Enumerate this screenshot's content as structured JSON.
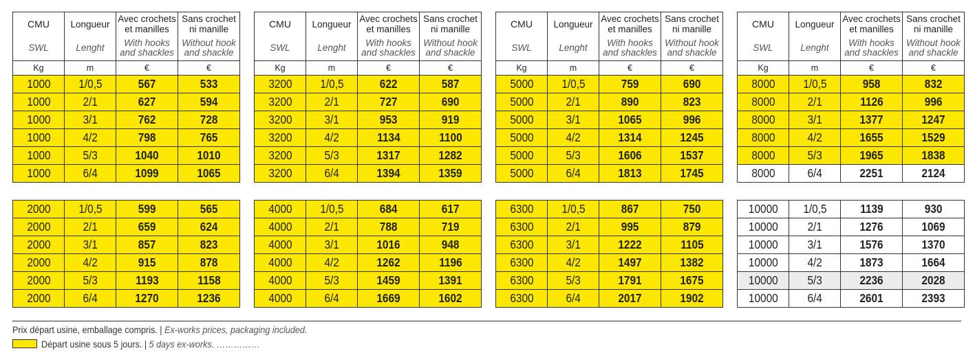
{
  "header": {
    "col_cmu": "CMU",
    "col_longueur": "Longueur",
    "col_avec_1": "Avec crochets",
    "col_avec_2": "et manilles",
    "col_sans_1": "Sans crochet",
    "col_sans_2": "ni manille",
    "en_swl": "SWL",
    "en_lenght": "Lenght",
    "en_with_1": "With hooks",
    "en_with_2": "and shackles",
    "en_without_1": "Without hook",
    "en_without_2": "and shackle",
    "unit_kg": "Kg",
    "unit_m": "m",
    "unit_eur": "€"
  },
  "tables": [
    {
      "rows": [
        {
          "cmu": "1000",
          "len": "1/0,5",
          "avec": "567",
          "sans": "533",
          "style": "yellow"
        },
        {
          "cmu": "1000",
          "len": "2/1",
          "avec": "627",
          "sans": "594",
          "style": "yellow"
        },
        {
          "cmu": "1000",
          "len": "3/1",
          "avec": "762",
          "sans": "728",
          "style": "yellow"
        },
        {
          "cmu": "1000",
          "len": "4/2",
          "avec": "798",
          "sans": "765",
          "style": "yellow"
        },
        {
          "cmu": "1000",
          "len": "5/3",
          "avec": "1040",
          "sans": "1010",
          "style": "yellow"
        },
        {
          "cmu": "1000",
          "len": "6/4",
          "avec": "1099",
          "sans": "1065",
          "style": "yellow"
        }
      ]
    },
    {
      "rows": [
        {
          "cmu": "3200",
          "len": "1/0,5",
          "avec": "622",
          "sans": "587",
          "style": "yellow"
        },
        {
          "cmu": "3200",
          "len": "2/1",
          "avec": "727",
          "sans": "690",
          "style": "yellow"
        },
        {
          "cmu": "3200",
          "len": "3/1",
          "avec": "953",
          "sans": "919",
          "style": "yellow"
        },
        {
          "cmu": "3200",
          "len": "4/2",
          "avec": "1134",
          "sans": "1100",
          "style": "yellow"
        },
        {
          "cmu": "3200",
          "len": "5/3",
          "avec": "1317",
          "sans": "1282",
          "style": "yellow"
        },
        {
          "cmu": "3200",
          "len": "6/4",
          "avec": "1394",
          "sans": "1359",
          "style": "yellow"
        }
      ]
    },
    {
      "rows": [
        {
          "cmu": "5000",
          "len": "1/0,5",
          "avec": "759",
          "sans": "690",
          "style": "yellow"
        },
        {
          "cmu": "5000",
          "len": "2/1",
          "avec": "890",
          "sans": "823",
          "style": "yellow"
        },
        {
          "cmu": "5000",
          "len": "3/1",
          "avec": "1065",
          "sans": "996",
          "style": "yellow"
        },
        {
          "cmu": "5000",
          "len": "4/2",
          "avec": "1314",
          "sans": "1245",
          "style": "yellow"
        },
        {
          "cmu": "5000",
          "len": "5/3",
          "avec": "1606",
          "sans": "1537",
          "style": "yellow"
        },
        {
          "cmu": "5000",
          "len": "6/4",
          "avec": "1813",
          "sans": "1745",
          "style": "yellow"
        }
      ]
    },
    {
      "rows": [
        {
          "cmu": "8000",
          "len": "1/0,5",
          "avec": "958",
          "sans": "832",
          "style": "yellow"
        },
        {
          "cmu": "8000",
          "len": "2/1",
          "avec": "1126",
          "sans": "996",
          "style": "yellow"
        },
        {
          "cmu": "8000",
          "len": "3/1",
          "avec": "1377",
          "sans": "1247",
          "style": "yellow"
        },
        {
          "cmu": "8000",
          "len": "4/2",
          "avec": "1655",
          "sans": "1529",
          "style": "yellow"
        },
        {
          "cmu": "8000",
          "len": "5/3",
          "avec": "1965",
          "sans": "1838",
          "style": "yellow"
        },
        {
          "cmu": "8000",
          "len": "6/4",
          "avec": "2251",
          "sans": "2124",
          "style": "white"
        }
      ]
    },
    {
      "rows": [
        {
          "cmu": "2000",
          "len": "1/0,5",
          "avec": "599",
          "sans": "565",
          "style": "yellow"
        },
        {
          "cmu": "2000",
          "len": "2/1",
          "avec": "659",
          "sans": "624",
          "style": "yellow"
        },
        {
          "cmu": "2000",
          "len": "3/1",
          "avec": "857",
          "sans": "823",
          "style": "yellow"
        },
        {
          "cmu": "2000",
          "len": "4/2",
          "avec": "915",
          "sans": "878",
          "style": "yellow"
        },
        {
          "cmu": "2000",
          "len": "5/3",
          "avec": "1193",
          "sans": "1158",
          "style": "yellow"
        },
        {
          "cmu": "2000",
          "len": "6/4",
          "avec": "1270",
          "sans": "1236",
          "style": "yellow"
        }
      ]
    },
    {
      "rows": [
        {
          "cmu": "4000",
          "len": "1/0,5",
          "avec": "684",
          "sans": "617",
          "style": "yellow"
        },
        {
          "cmu": "4000",
          "len": "2/1",
          "avec": "788",
          "sans": "719",
          "style": "yellow"
        },
        {
          "cmu": "4000",
          "len": "3/1",
          "avec": "1016",
          "sans": "948",
          "style": "yellow"
        },
        {
          "cmu": "4000",
          "len": "4/2",
          "avec": "1262",
          "sans": "1196",
          "style": "yellow"
        },
        {
          "cmu": "4000",
          "len": "5/3",
          "avec": "1459",
          "sans": "1391",
          "style": "yellow"
        },
        {
          "cmu": "4000",
          "len": "6/4",
          "avec": "1669",
          "sans": "1602",
          "style": "yellow"
        }
      ]
    },
    {
      "rows": [
        {
          "cmu": "6300",
          "len": "1/0,5",
          "avec": "867",
          "sans": "750",
          "style": "yellow"
        },
        {
          "cmu": "6300",
          "len": "2/1",
          "avec": "995",
          "sans": "879",
          "style": "yellow"
        },
        {
          "cmu": "6300",
          "len": "3/1",
          "avec": "1222",
          "sans": "1105",
          "style": "yellow"
        },
        {
          "cmu": "6300",
          "len": "4/2",
          "avec": "1497",
          "sans": "1382",
          "style": "yellow"
        },
        {
          "cmu": "6300",
          "len": "5/3",
          "avec": "1791",
          "sans": "1675",
          "style": "yellow"
        },
        {
          "cmu": "6300",
          "len": "6/4",
          "avec": "2017",
          "sans": "1902",
          "style": "yellow"
        }
      ]
    },
    {
      "rows": [
        {
          "cmu": "10000",
          "len": "1/0,5",
          "avec": "1139",
          "sans": "930",
          "style": "white"
        },
        {
          "cmu": "10000",
          "len": "2/1",
          "avec": "1276",
          "sans": "1069",
          "style": "white"
        },
        {
          "cmu": "10000",
          "len": "3/1",
          "avec": "1576",
          "sans": "1370",
          "style": "white"
        },
        {
          "cmu": "10000",
          "len": "4/2",
          "avec": "1873",
          "sans": "1664",
          "style": "white"
        },
        {
          "cmu": "10000",
          "len": "5/3",
          "avec": "2236",
          "sans": "2028",
          "style": "grey"
        },
        {
          "cmu": "10000",
          "len": "6/4",
          "avec": "2601",
          "sans": "2393",
          "style": "white"
        }
      ]
    }
  ],
  "footer": {
    "line1_fr": "Prix départ usine, emballage compris. | ",
    "line1_en": "Ex-works prices, packaging included.",
    "line2_fr": "Départ usine sous 5 jours. | ",
    "line2_en": "5 days ex-works.",
    "line2_dots": "……………",
    "legend_color": "#fbe700"
  }
}
